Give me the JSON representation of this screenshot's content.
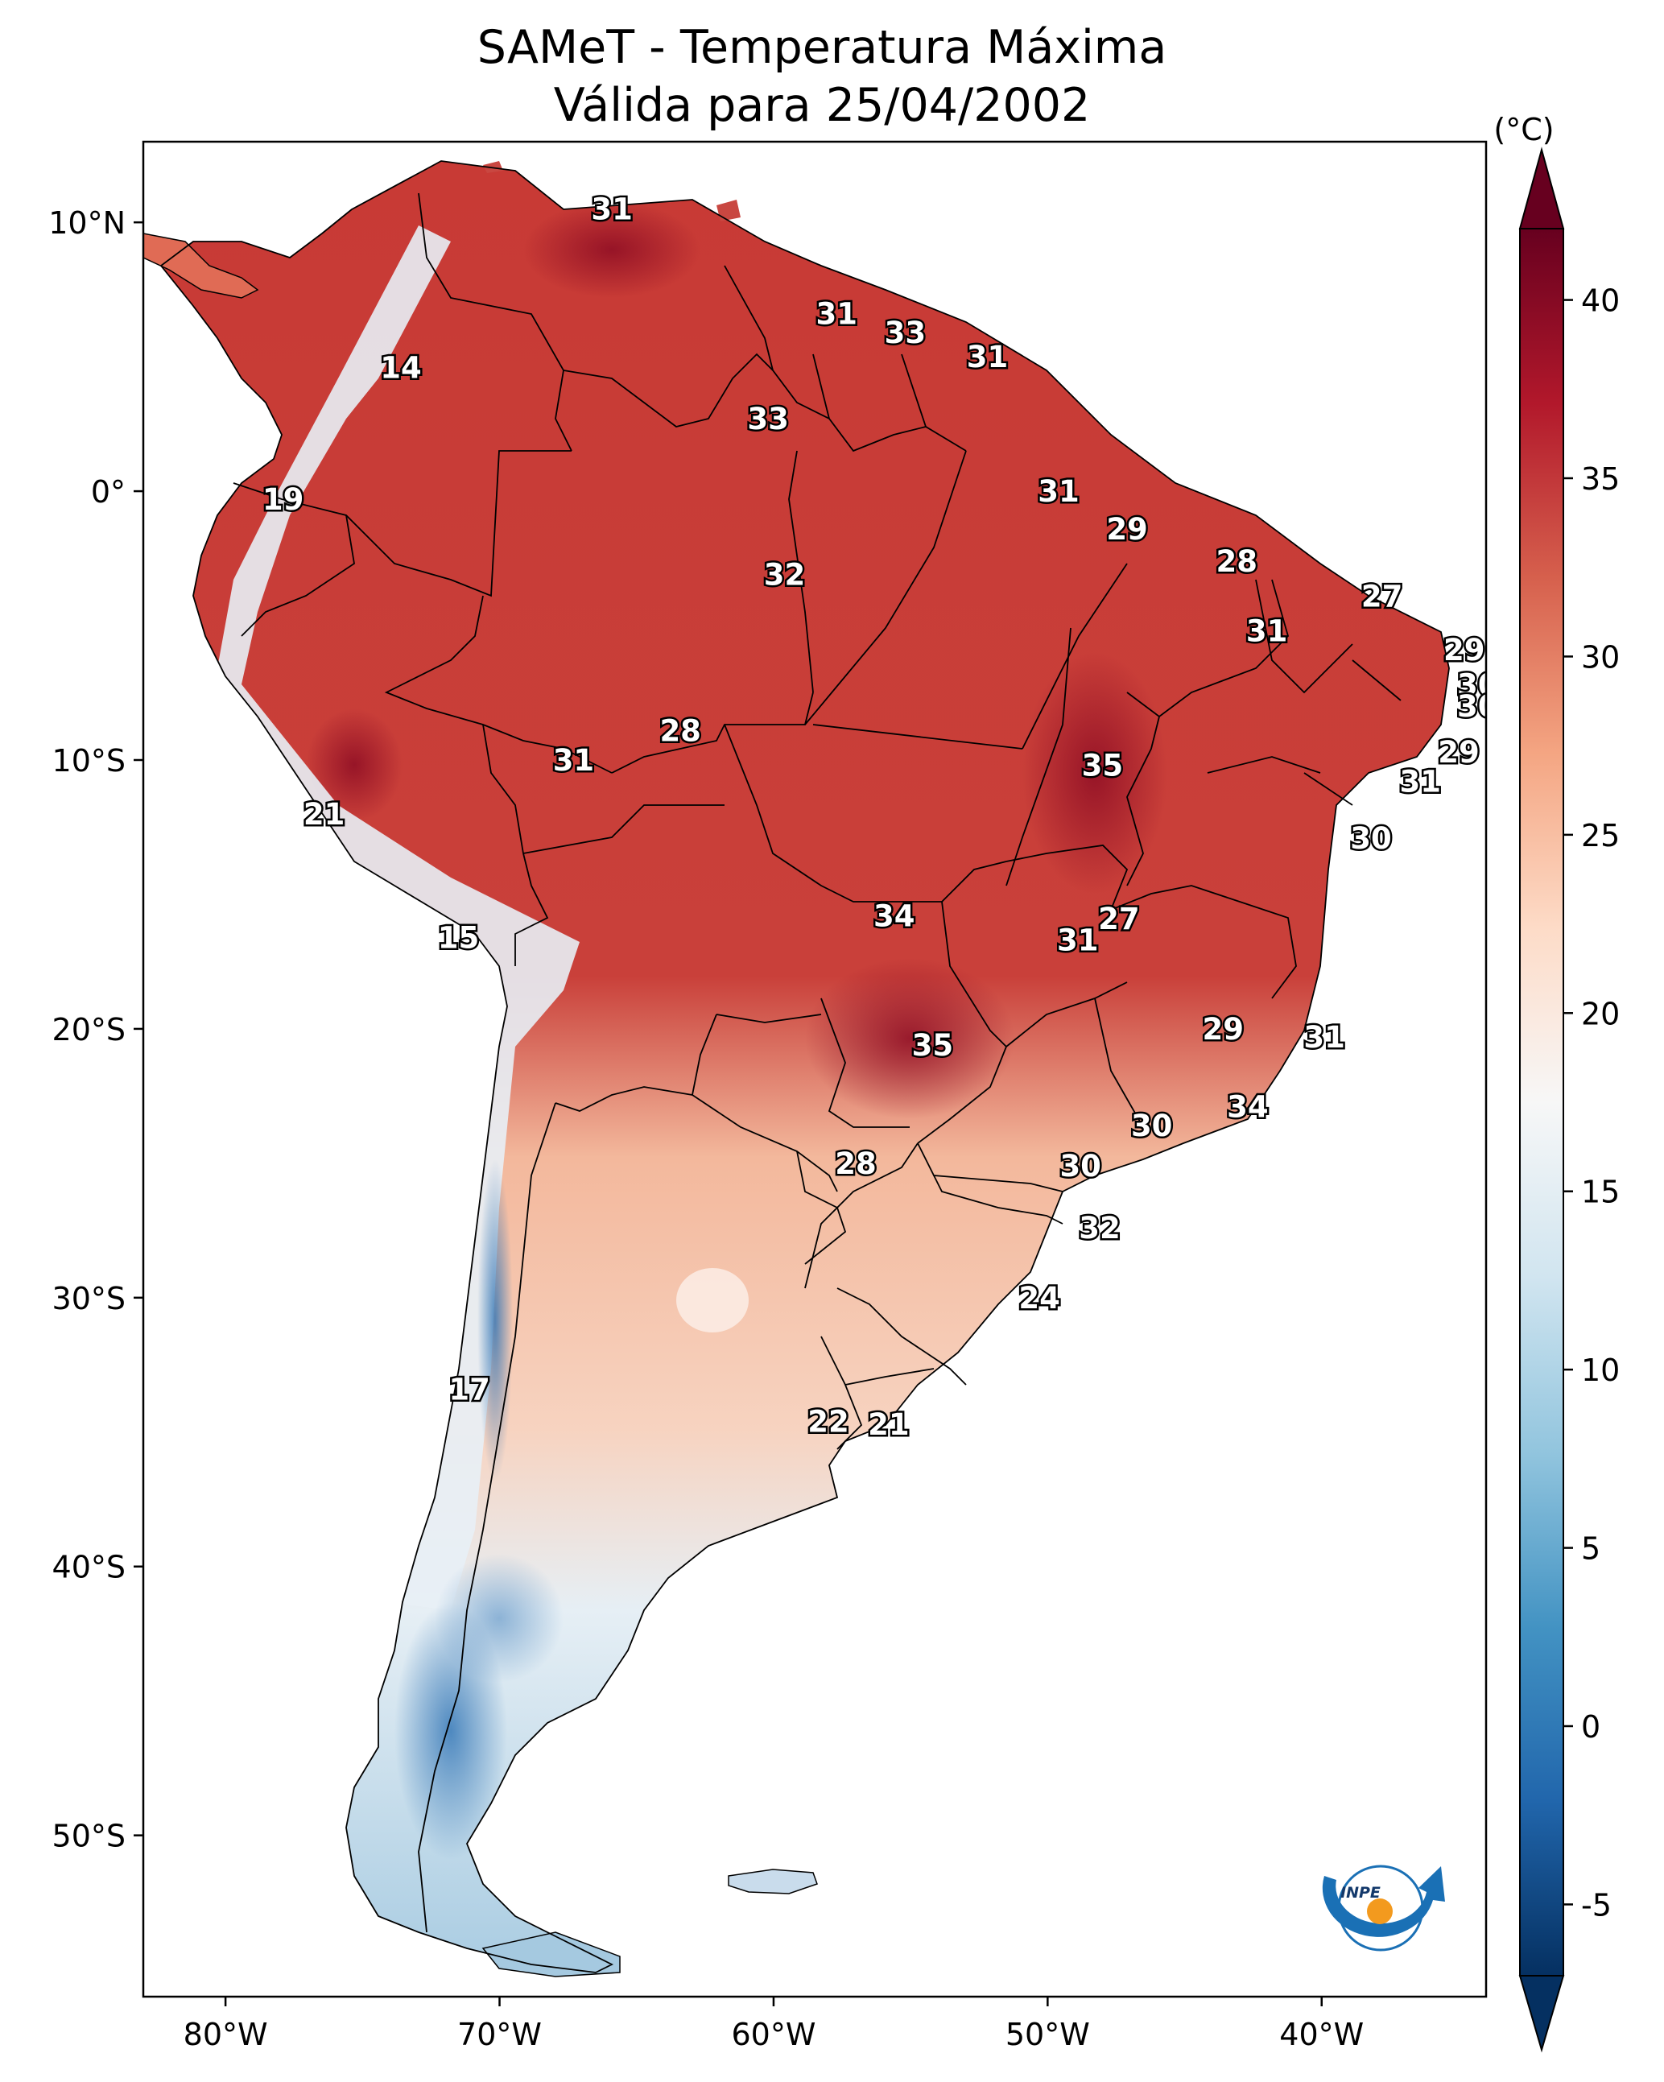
{
  "title": {
    "line1": "SAMeT - Temperatura Máxima",
    "line2": "Válida para 25/04/2002"
  },
  "map": {
    "lon_range": [
      -83,
      -34
    ],
    "lat_range": [
      -56,
      13
    ],
    "lon_ticks": [
      {
        "value": -80,
        "label": "80°W"
      },
      {
        "value": -70,
        "label": "70°W"
      },
      {
        "value": -60,
        "label": "60°W"
      },
      {
        "value": -50,
        "label": "50°W"
      },
      {
        "value": -40,
        "label": "40°W"
      }
    ],
    "lat_ticks": [
      {
        "value": 10,
        "label": "10°N"
      },
      {
        "value": 0,
        "label": "0°"
      },
      {
        "value": -10,
        "label": "10°S"
      },
      {
        "value": -20,
        "label": "20°S"
      },
      {
        "value": -30,
        "label": "30°S"
      },
      {
        "value": -40,
        "label": "40°S"
      },
      {
        "value": -50,
        "label": "50°S"
      }
    ],
    "labels": [
      {
        "text": "31",
        "lon": -65.9,
        "lat": 10.5
      },
      {
        "text": "14",
        "lon": -73.6,
        "lat": 4.6
      },
      {
        "text": "31",
        "lon": -57.7,
        "lat": 6.6
      },
      {
        "text": "33",
        "lon": -55.2,
        "lat": 5.9
      },
      {
        "text": "31",
        "lon": -52.2,
        "lat": 5.0
      },
      {
        "text": "33",
        "lon": -60.2,
        "lat": 2.7
      },
      {
        "text": "19",
        "lon": -77.9,
        "lat": -0.3
      },
      {
        "text": "31",
        "lon": -49.6,
        "lat": 0.0
      },
      {
        "text": "29",
        "lon": -47.1,
        "lat": -1.4
      },
      {
        "text": "32",
        "lon": -59.6,
        "lat": -3.1
      },
      {
        "text": "28",
        "lon": -43.1,
        "lat": -2.6
      },
      {
        "text": "27",
        "lon": -37.8,
        "lat": -3.9
      },
      {
        "text": "31",
        "lon": -42.0,
        "lat": -5.2
      },
      {
        "text": "29",
        "lon": -34.8,
        "lat": -5.9
      },
      {
        "text": "30",
        "lon": -34.3,
        "lat": -7.2
      },
      {
        "text": "30",
        "lon": -34.3,
        "lat": -8.0
      },
      {
        "text": "28",
        "lon": -63.4,
        "lat": -8.9
      },
      {
        "text": "31",
        "lon": -67.3,
        "lat": -10.0
      },
      {
        "text": "35",
        "lon": -48.0,
        "lat": -10.2
      },
      {
        "text": "29",
        "lon": -35.0,
        "lat": -9.7
      },
      {
        "text": "31",
        "lon": -36.4,
        "lat": -10.8
      },
      {
        "text": "21",
        "lon": -76.4,
        "lat": -12.0
      },
      {
        "text": "30",
        "lon": -38.2,
        "lat": -12.9
      },
      {
        "text": "34",
        "lon": -55.6,
        "lat": -15.8
      },
      {
        "text": "27",
        "lon": -47.4,
        "lat": -15.9
      },
      {
        "text": "31",
        "lon": -48.9,
        "lat": -16.7
      },
      {
        "text": "15",
        "lon": -71.5,
        "lat": -16.6
      },
      {
        "text": "29",
        "lon": -43.6,
        "lat": -20.0
      },
      {
        "text": "31",
        "lon": -39.9,
        "lat": -20.3
      },
      {
        "text": "35",
        "lon": -54.2,
        "lat": -20.6
      },
      {
        "text": "34",
        "lon": -42.7,
        "lat": -22.9
      },
      {
        "text": "30",
        "lon": -46.2,
        "lat": -23.6
      },
      {
        "text": "28",
        "lon": -57.0,
        "lat": -25.0
      },
      {
        "text": "30",
        "lon": -48.8,
        "lat": -25.1
      },
      {
        "text": "32",
        "lon": -48.1,
        "lat": -27.4
      },
      {
        "text": "24",
        "lon": -50.3,
        "lat": -30.0
      },
      {
        "text": "17",
        "lon": -71.1,
        "lat": -33.4
      },
      {
        "text": "22",
        "lon": -58.0,
        "lat": -34.6
      },
      {
        "text": "21",
        "lon": -55.8,
        "lat": -34.7
      }
    ]
  },
  "colorbar": {
    "unit": "(°C)",
    "min": -7,
    "max": 42,
    "ticks": [
      {
        "value": 40,
        "label": "40"
      },
      {
        "value": 35,
        "label": "35"
      },
      {
        "value": 30,
        "label": "30"
      },
      {
        "value": 25,
        "label": "25"
      },
      {
        "value": 20,
        "label": "20"
      },
      {
        "value": 15,
        "label": "15"
      },
      {
        "value": 10,
        "label": "10"
      },
      {
        "value": 5,
        "label": "5"
      },
      {
        "value": 0,
        "label": "0"
      },
      {
        "value": -5,
        "label": "-5"
      }
    ],
    "colors": [
      "#053061",
      "#2166ac",
      "#4393c3",
      "#92c5de",
      "#d1e5f0",
      "#f7f7f7",
      "#fddbc7",
      "#f4a582",
      "#d6604d",
      "#b2182b",
      "#67001f"
    ]
  },
  "logo": {
    "text": "INPE"
  }
}
